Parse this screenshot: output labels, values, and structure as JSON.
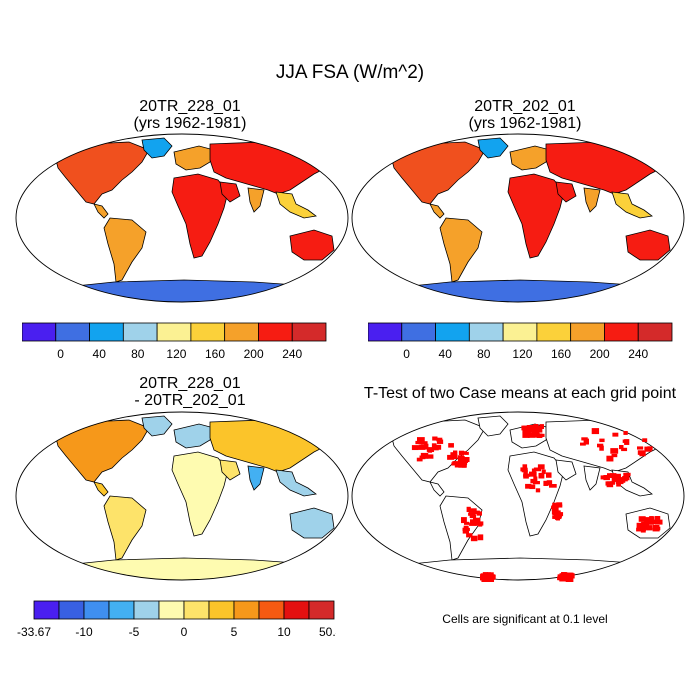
{
  "title": "JJA FSA (W/m^2)",
  "panels": [
    {
      "id": "p1",
      "line1": "20TR_228_01",
      "line2": "(yrs 1962-1981)",
      "kind": "abs"
    },
    {
      "id": "p2",
      "line1": "20TR_202_01",
      "line2": "(yrs 1962-1981)",
      "kind": "abs"
    },
    {
      "id": "p3",
      "line1": "20TR_228_01",
      "line2": "- 20TR_202_01",
      "kind": "diff"
    },
    {
      "id": "p4",
      "line1": "T-Test of two Case means at each grid point",
      "line2": "",
      "kind": "ttest"
    }
  ],
  "colorbar_abs": {
    "colors": [
      "#4a1ff0",
      "#3f6fe2",
      "#12a3ef",
      "#9fd2ea",
      "#fbf193",
      "#fbd13a",
      "#f5a12a",
      "#f61c12",
      "#d42a2a"
    ],
    "labels": [
      "0",
      "40",
      "80",
      "120",
      "160",
      "200",
      "240"
    ]
  },
  "colorbar_diff": {
    "colors": [
      "#4a1ff0",
      "#3860e2",
      "#3f8ff0",
      "#43b0f2",
      "#9fd2ea",
      "#fefbb0",
      "#fde36a",
      "#fbc42a",
      "#f6981a",
      "#f65a12",
      "#e41010",
      "#d42a2a"
    ],
    "labels": [
      "-33.67",
      "-10",
      "-5",
      "0",
      "5",
      "10",
      "50.41"
    ]
  },
  "ttest_color": "#ff0000",
  "note": "Cells are significant at 0.1 level"
}
